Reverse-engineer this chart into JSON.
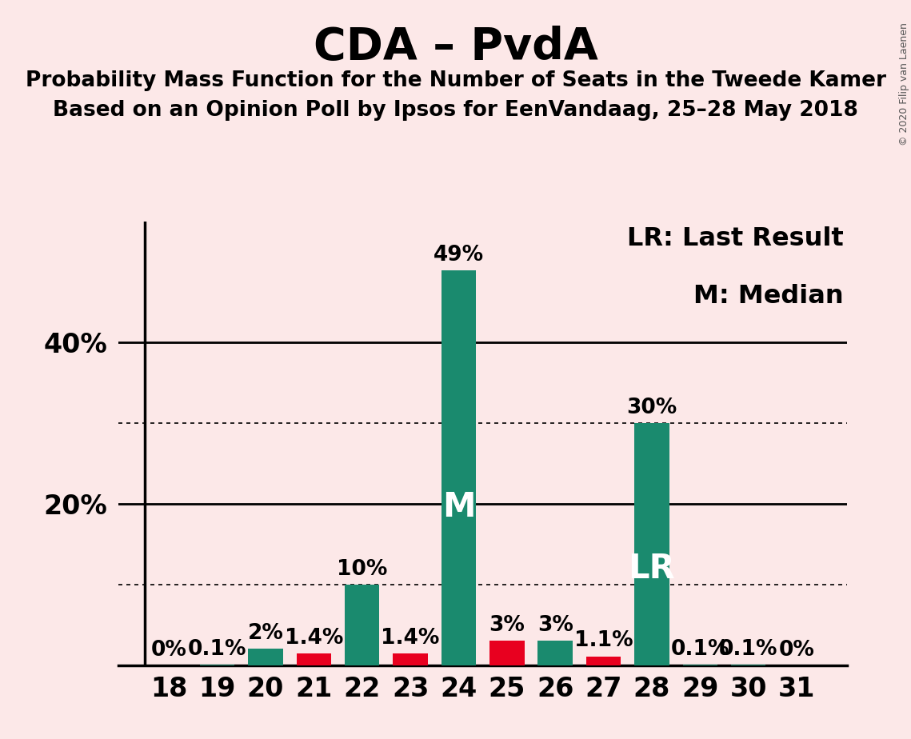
{
  "title": "CDA – PvdA",
  "subtitle1": "Probability Mass Function for the Number of Seats in the Tweede Kamer",
  "subtitle2": "Based on an Opinion Poll by Ipsos for EenVandaag, 25–28 May 2018",
  "watermark": "© 2020 Filip van Laenen",
  "legend_lr": "LR: Last Result",
  "legend_m": "M: Median",
  "seats": [
    18,
    19,
    20,
    21,
    22,
    23,
    24,
    25,
    26,
    27,
    28,
    29,
    30,
    31
  ],
  "values": [
    0.0,
    0.1,
    2.0,
    1.4,
    10.0,
    1.4,
    49.0,
    3.0,
    3.0,
    1.1,
    30.0,
    0.1,
    0.1,
    0.0
  ],
  "labels": [
    "0%",
    "0.1%",
    "2%",
    "1.4%",
    "10%",
    "1.4%",
    "49%",
    "3%",
    "3%",
    "1.1%",
    "30%",
    "0.1%",
    "0.1%",
    "0%"
  ],
  "colors": [
    "#1a8a6e",
    "#1a8a6e",
    "#1a8a6e",
    "#e8001f",
    "#1a8a6e",
    "#e8001f",
    "#1a8a6e",
    "#e8001f",
    "#1a8a6e",
    "#e8001f",
    "#1a8a6e",
    "#1a8a6e",
    "#1a8a6e",
    "#1a8a6e"
  ],
  "bar_labels": [
    "",
    "",
    "",
    "",
    "",
    "",
    "M",
    "",
    "",
    "",
    "LR",
    "",
    "",
    ""
  ],
  "background_color": "#fce8e8",
  "ylim": [
    0,
    55
  ],
  "solid_gridlines": [
    20,
    40
  ],
  "dotted_gridlines": [
    10,
    30
  ],
  "title_fontsize": 40,
  "subtitle_fontsize": 19,
  "tick_fontsize": 24,
  "label_fontsize": 19,
  "bar_label_fontsize": 30,
  "legend_fontsize": 23,
  "watermark_fontsize": 9
}
